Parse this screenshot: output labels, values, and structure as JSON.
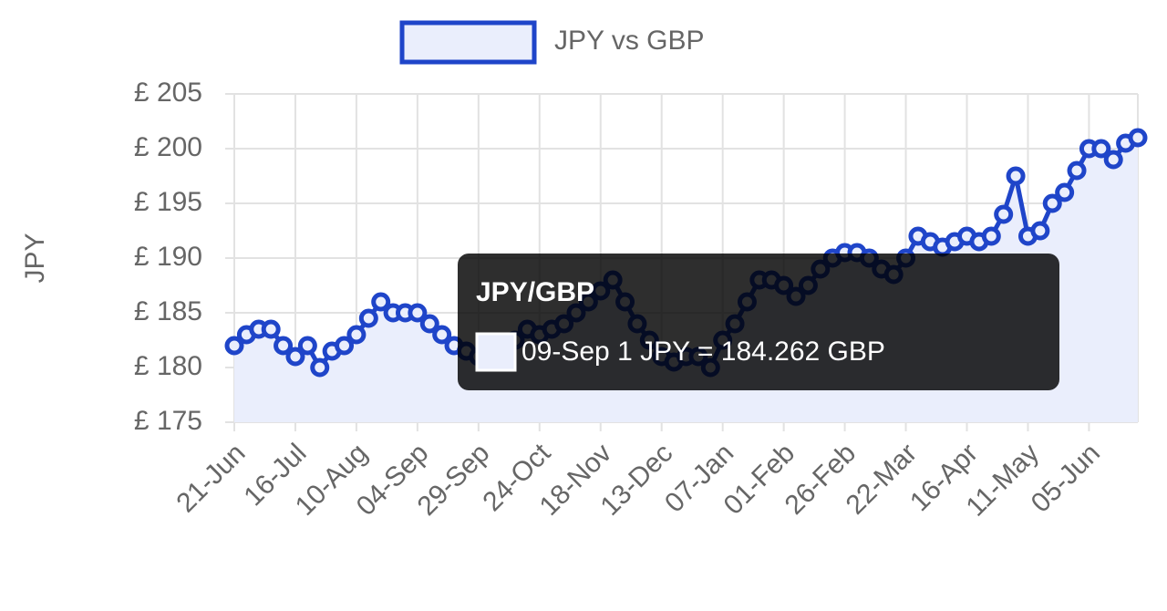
{
  "chart_data": {
    "type": "line",
    "y_label": "JPY",
    "legend_position": "top",
    "grid": true,
    "series": [
      {
        "name": "JPY vs GBP",
        "color": "#1f45c9",
        "fill": "#eaeefc",
        "values": [
          182,
          183,
          183.5,
          183.5,
          182,
          181,
          182,
          180,
          181.5,
          182,
          183,
          184.5,
          186,
          185,
          185,
          185,
          184,
          183,
          182,
          181.5,
          181,
          180.5,
          181.5,
          182.5,
          183.5,
          183,
          183.5,
          184,
          185,
          186,
          187,
          188,
          186,
          184,
          182.5,
          181,
          180.5,
          181,
          181,
          180,
          182.5,
          184,
          186,
          188,
          188,
          187.5,
          186.5,
          187.5,
          189,
          190,
          190.5,
          190.5,
          190,
          189,
          188.5,
          190,
          192,
          191.5,
          191,
          191.5,
          192,
          191.5,
          192,
          194,
          197.5,
          192,
          192.5,
          195,
          196,
          198,
          200,
          200,
          199,
          200.5,
          201
        ]
      }
    ],
    "categories": [
      "21-Jun",
      null,
      null,
      null,
      null,
      "16-Jul",
      null,
      null,
      null,
      null,
      "10-Aug",
      null,
      null,
      null,
      null,
      "04-Sep",
      null,
      null,
      null,
      null,
      "29-Sep",
      null,
      null,
      null,
      null,
      "24-Oct",
      null,
      null,
      null,
      null,
      "18-Nov",
      null,
      null,
      null,
      null,
      "13-Dec",
      null,
      null,
      null,
      null,
      "07-Jan",
      null,
      null,
      null,
      null,
      "01-Feb",
      null,
      null,
      null,
      null,
      "26-Feb",
      null,
      null,
      null,
      null,
      "22-Mar",
      null,
      null,
      null,
      null,
      "16-Apr",
      null,
      null,
      null,
      null,
      "11-May",
      null,
      null,
      null,
      null,
      "05-Jun",
      null,
      null,
      null,
      null
    ],
    "ylim": [
      175,
      205
    ],
    "yticks": [
      {
        "value": 175,
        "label": "£ 175"
      },
      {
        "value": 180,
        "label": "£ 180"
      },
      {
        "value": 185,
        "label": "£ 185"
      },
      {
        "value": 190,
        "label": "£ 190"
      },
      {
        "value": 195,
        "label": "£ 195"
      },
      {
        "value": 200,
        "label": "£ 200"
      },
      {
        "value": 205,
        "label": "£ 205"
      }
    ],
    "tooltip": {
      "title": "JPY/GBP",
      "text": "09-Sep 1 JPY = 184.262 GBP"
    }
  }
}
